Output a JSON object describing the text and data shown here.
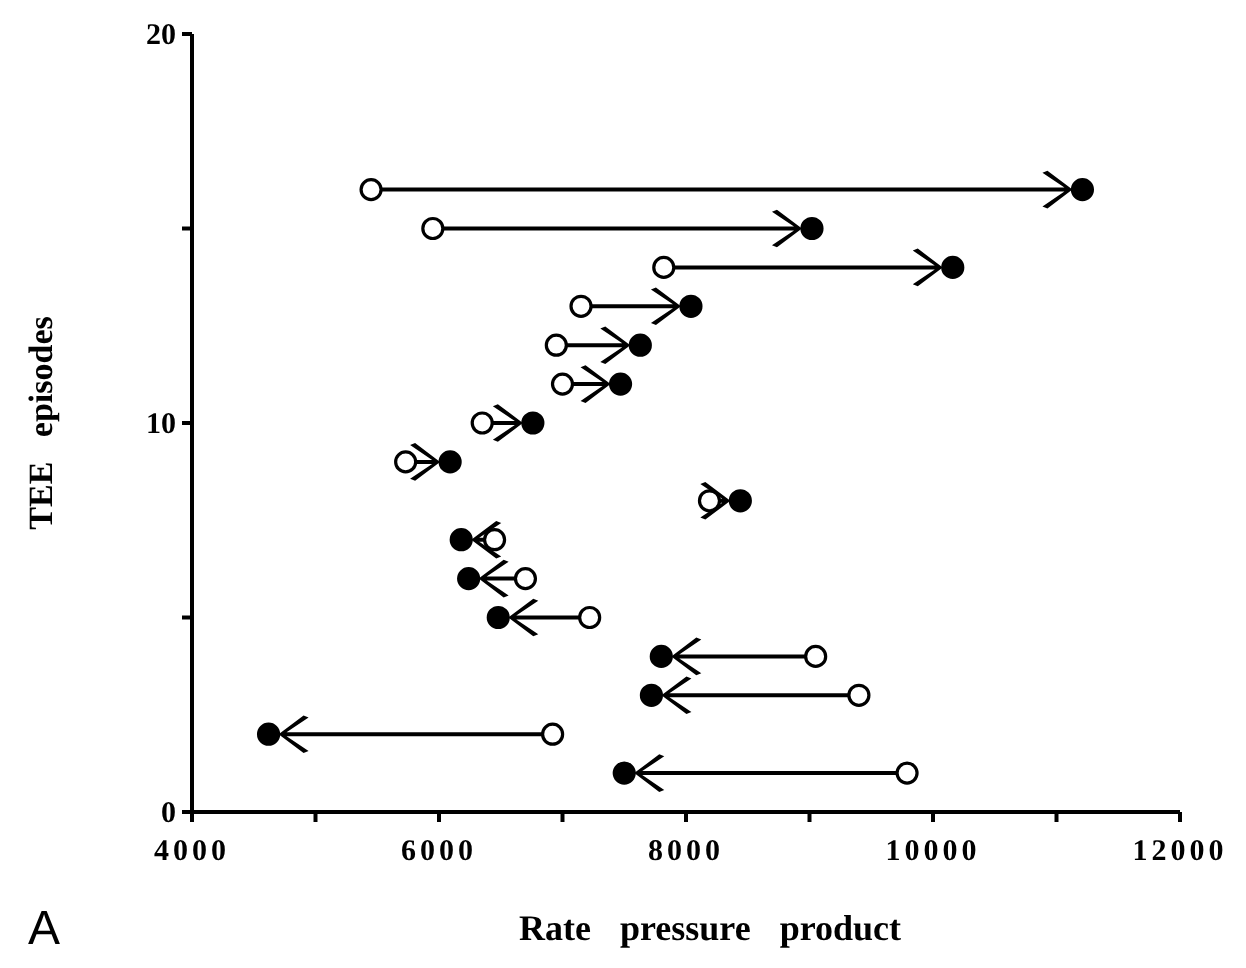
{
  "chart_data": {
    "type": "scatter",
    "xlabel": "Rate pressure product",
    "ylabel": "TEE episodes",
    "annotations": [
      "A"
    ],
    "xlim": [
      4000,
      12000
    ],
    "xticks": [
      4000,
      {
        "value": 5000,
        "label": null
      },
      6000,
      {
        "value": 7000,
        "label": null
      },
      8000,
      {
        "value": 9000,
        "label": null
      },
      10000,
      {
        "value": 11000,
        "label": null
      },
      12000
    ],
    "ylim": [
      0,
      20
    ],
    "yticks": [
      0,
      {
        "value": 5,
        "label": null
      },
      10,
      {
        "value": 15,
        "label": null
      },
      20
    ],
    "grid": false,
    "marker": "circle",
    "series": [
      {
        "color": "#ffffff",
        "x": [
          9790,
          6920,
          9400,
          9050,
          7220,
          6700,
          6450,
          8190,
          5730,
          6350,
          7000,
          6950,
          7150,
          7820,
          5950,
          5450
        ],
        "values": [
          1,
          2,
          3,
          4,
          5,
          6,
          7,
          8,
          9,
          10,
          11,
          12,
          13,
          14,
          15,
          16
        ]
      },
      {
        "color": "#000000",
        "x": [
          7500,
          4620,
          7720,
          7800,
          6480,
          6240,
          6180,
          8440,
          6090,
          6760,
          7470,
          7630,
          8040,
          10160,
          9020,
          11210
        ],
        "values": [
          1,
          2,
          3,
          4,
          5,
          6,
          7,
          8,
          9,
          10,
          11,
          12,
          13,
          14,
          15,
          16
        ]
      }
    ]
  }
}
